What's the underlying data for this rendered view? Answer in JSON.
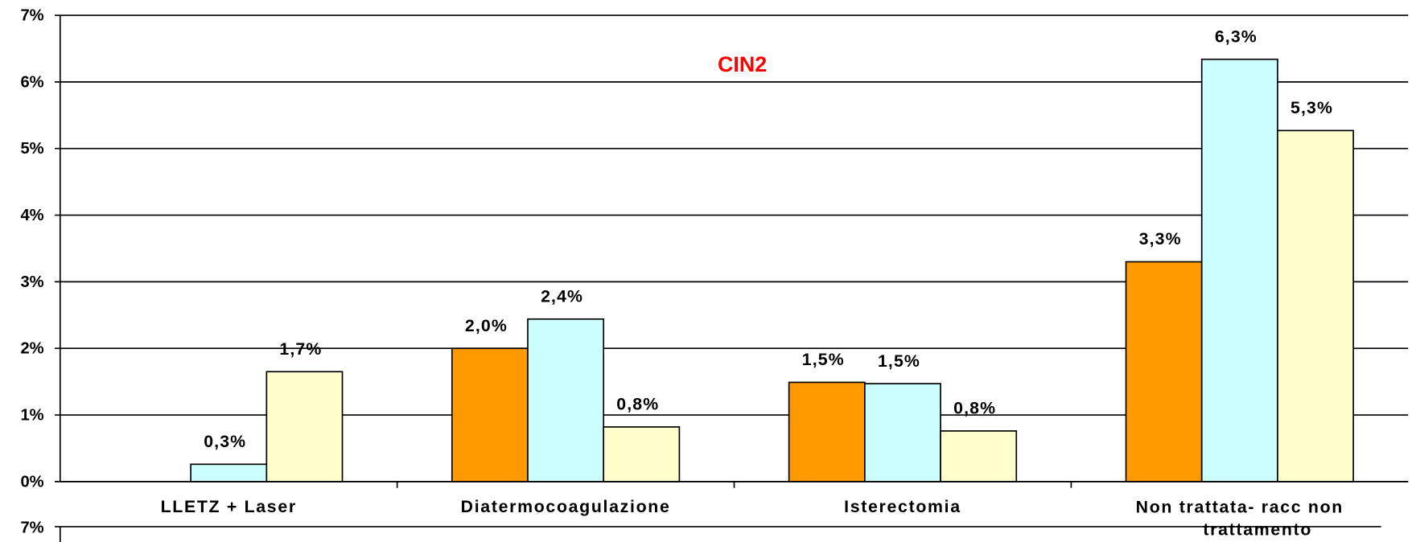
{
  "chart_data": [
    {
      "type": "bar",
      "title": "CIN2",
      "categories": [
        "LLETZ + Laser",
        "Diatermocoagulazione",
        "Isterectomia",
        "Non trattata- racc non trattamento"
      ],
      "series": [
        {
          "color": "#ff9900",
          "values": [
            null,
            2.0,
            1.49,
            3.3
          ],
          "value_labels": [
            null,
            "2,0%",
            "1,5%",
            "3,3%"
          ]
        },
        {
          "color": "#ccffff",
          "values": [
            0.26,
            2.44,
            1.47,
            6.34
          ],
          "value_labels": [
            "0,3%",
            "2,4%",
            "1,5%",
            "6,3%"
          ]
        },
        {
          "color": "#ffffcc",
          "values": [
            1.65,
            0.82,
            0.76,
            5.27
          ],
          "value_labels": [
            "1,7%",
            "0,8%",
            "0,8%",
            "5,3%"
          ]
        }
      ],
      "ylim": [
        0,
        7
      ],
      "yticks": [
        {
          "value": 0,
          "label": "0%"
        },
        {
          "value": 1,
          "label": "1%"
        },
        {
          "value": 2,
          "label": "2%"
        },
        {
          "value": 3,
          "label": "3%"
        },
        {
          "value": 4,
          "label": "4%"
        },
        {
          "value": 5,
          "label": "5%"
        },
        {
          "value": 6,
          "label": "6%"
        },
        {
          "value": 7,
          "label": "7%"
        }
      ],
      "grid": true
    },
    {
      "type": "bar",
      "yticks": [
        {
          "value": 7,
          "label": "7%"
        }
      ]
    }
  ]
}
